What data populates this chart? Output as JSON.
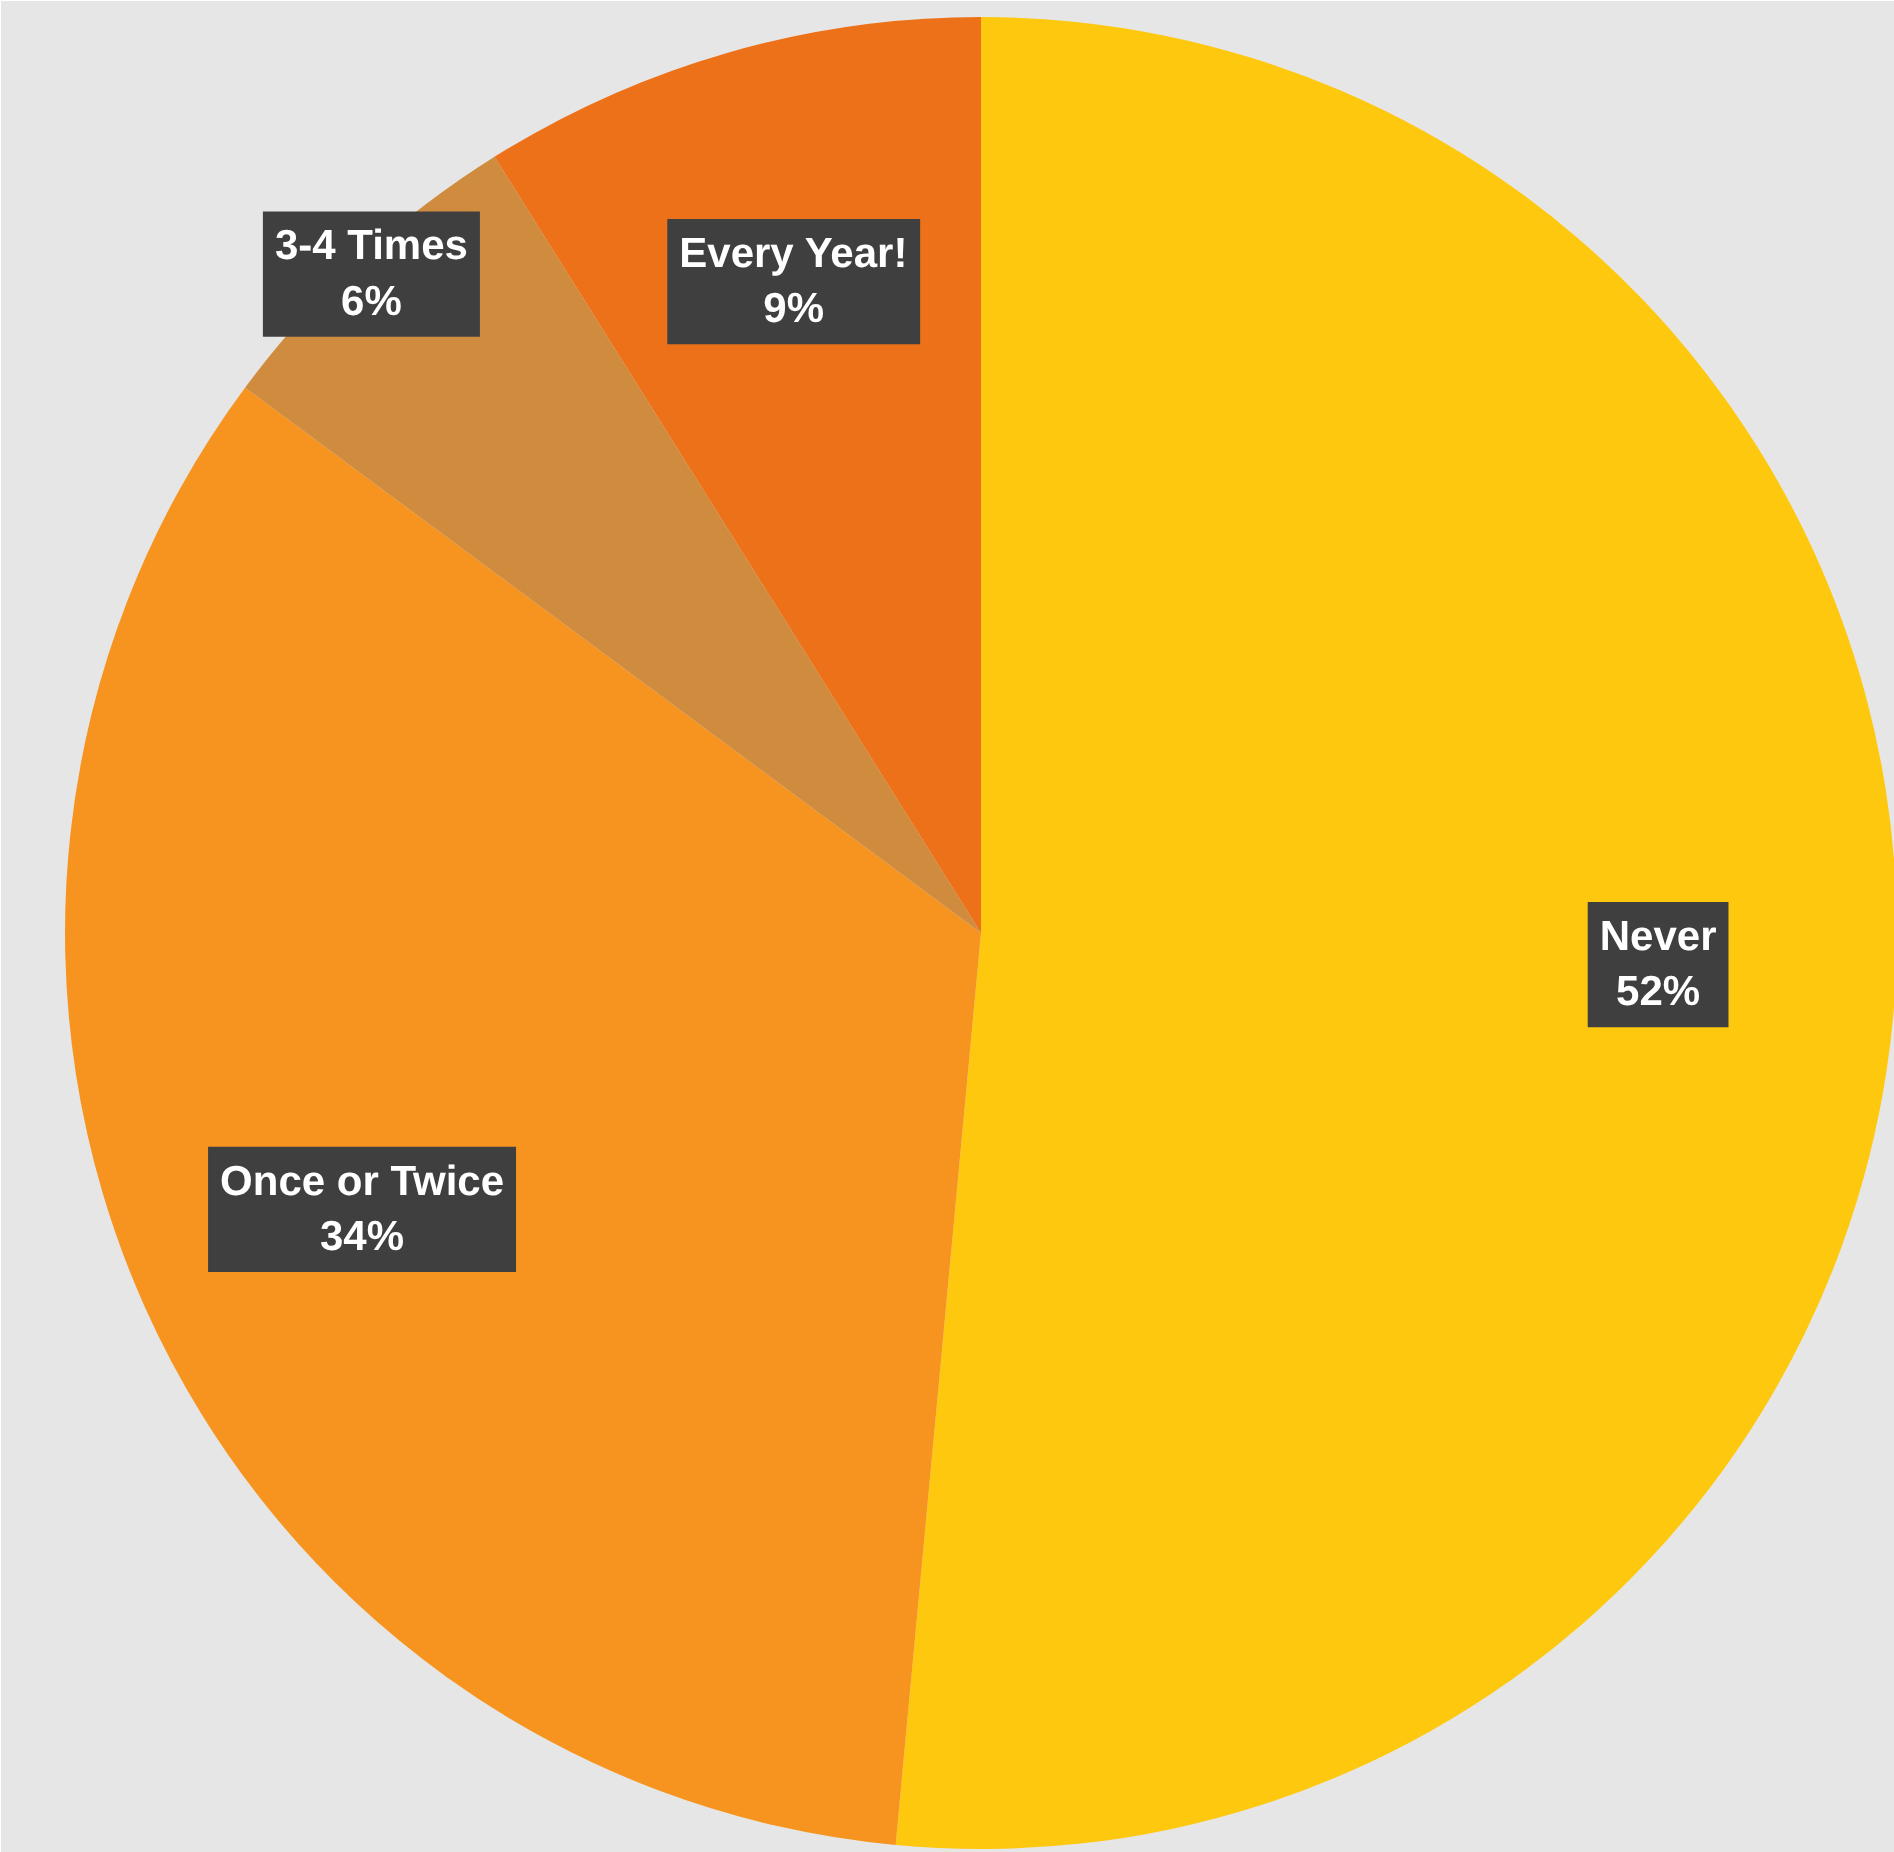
{
  "chart_data": {
    "type": "pie",
    "categories": [
      "Never",
      "Once or Twice",
      "3-4 Times",
      "Every Year!"
    ],
    "values": [
      52,
      34,
      6,
      9
    ],
    "value_labels": [
      "52%",
      "34%",
      "6%",
      "9%"
    ],
    "colors": [
      "#fec80e",
      "#f7941f",
      "#d08c3e",
      "#ec7119"
    ]
  }
}
